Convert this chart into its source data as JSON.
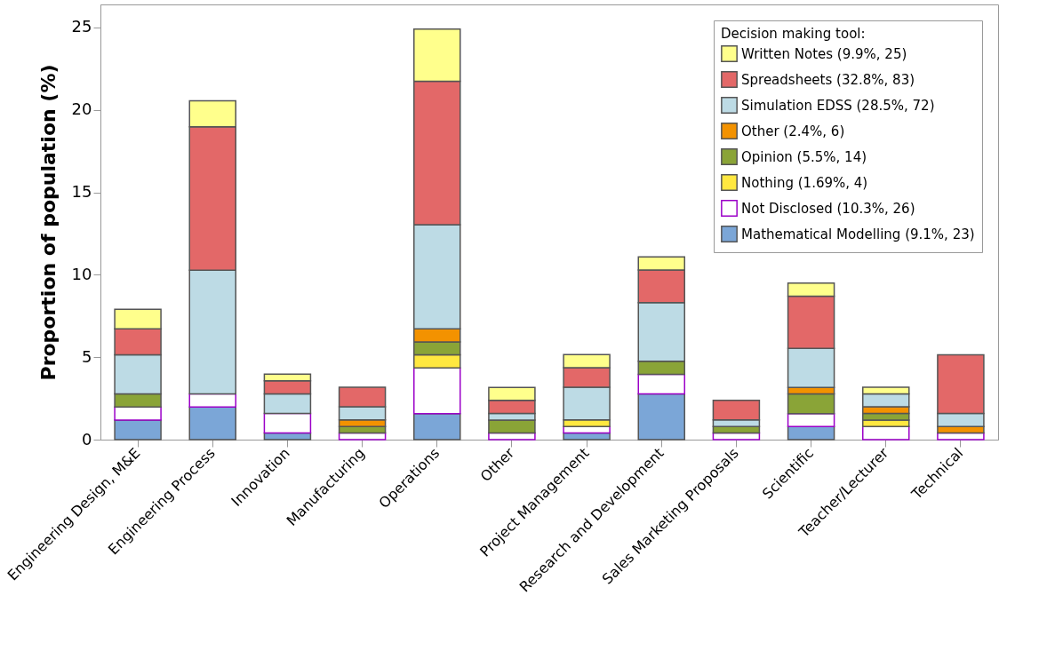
{
  "chart_data": {
    "type": "bar",
    "stacked": true,
    "ylabel": "Proportion of population (%)",
    "legend_title": "Decision making tool:",
    "legend": "top right",
    "categories": [
      "Engineering Design, M&E",
      "Engineering Process",
      "Innovation",
      "Manufacturing",
      "Operations",
      "Other",
      "Project Management",
      "Research and Development",
      "Sales Marketing Proposals",
      "Scientific",
      "Teacher/Lecturer",
      "Technical"
    ],
    "ylim": [
      0,
      26.4
    ],
    "yticks": [
      0,
      5,
      10,
      15,
      20,
      25
    ],
    "series": [
      {
        "name": "Mathematical Modelling (9.1%, 23)",
        "color": "#7ba6d7",
        "values": [
          1.19,
          1.98,
          0.4,
          null,
          1.58,
          null,
          0.4,
          2.77,
          null,
          0.79,
          null,
          null
        ]
      },
      {
        "name": "Not Disclosed (10.3%, 26)",
        "color": "#ffffff",
        "values": [
          0.79,
          0.79,
          1.19,
          0.4,
          2.77,
          0.4,
          0.4,
          1.19,
          0.4,
          0.79,
          0.79,
          0.4
        ]
      },
      {
        "name": "Nothing (1.69%, 4)",
        "color": "#ffe840",
        "values": [
          null,
          null,
          null,
          null,
          0.79,
          null,
          0.4,
          null,
          null,
          null,
          0.4,
          null
        ]
      },
      {
        "name": "Opinion (5.5%, 14)",
        "color": "#8aa437",
        "values": [
          0.79,
          null,
          null,
          0.4,
          0.79,
          0.79,
          null,
          0.79,
          0.4,
          1.19,
          0.4,
          null
        ]
      },
      {
        "name": "Other (2.4%, 6)",
        "color": "#f39200",
        "values": [
          null,
          null,
          null,
          0.4,
          0.79,
          null,
          null,
          null,
          null,
          0.4,
          0.4,
          0.4
        ]
      },
      {
        "name": "Simulation EDSS (28.5%, 72)",
        "color": "#bddbe5",
        "values": [
          2.37,
          7.51,
          1.19,
          0.79,
          6.32,
          0.4,
          1.98,
          3.56,
          0.4,
          2.37,
          0.79,
          0.79
        ]
      },
      {
        "name": "Spreadsheets (32.8%, 83)",
        "color": "#e36868",
        "values": [
          1.58,
          8.7,
          0.79,
          1.19,
          8.7,
          0.79,
          1.19,
          1.98,
          1.19,
          3.16,
          null,
          3.56
        ]
      },
      {
        "name": "Written Notes (9.9%, 25)",
        "color": "#ffff8c",
        "values": [
          1.19,
          1.58,
          0.4,
          null,
          3.16,
          0.79,
          0.79,
          0.79,
          null,
          0.79,
          0.4,
          null
        ]
      }
    ]
  }
}
